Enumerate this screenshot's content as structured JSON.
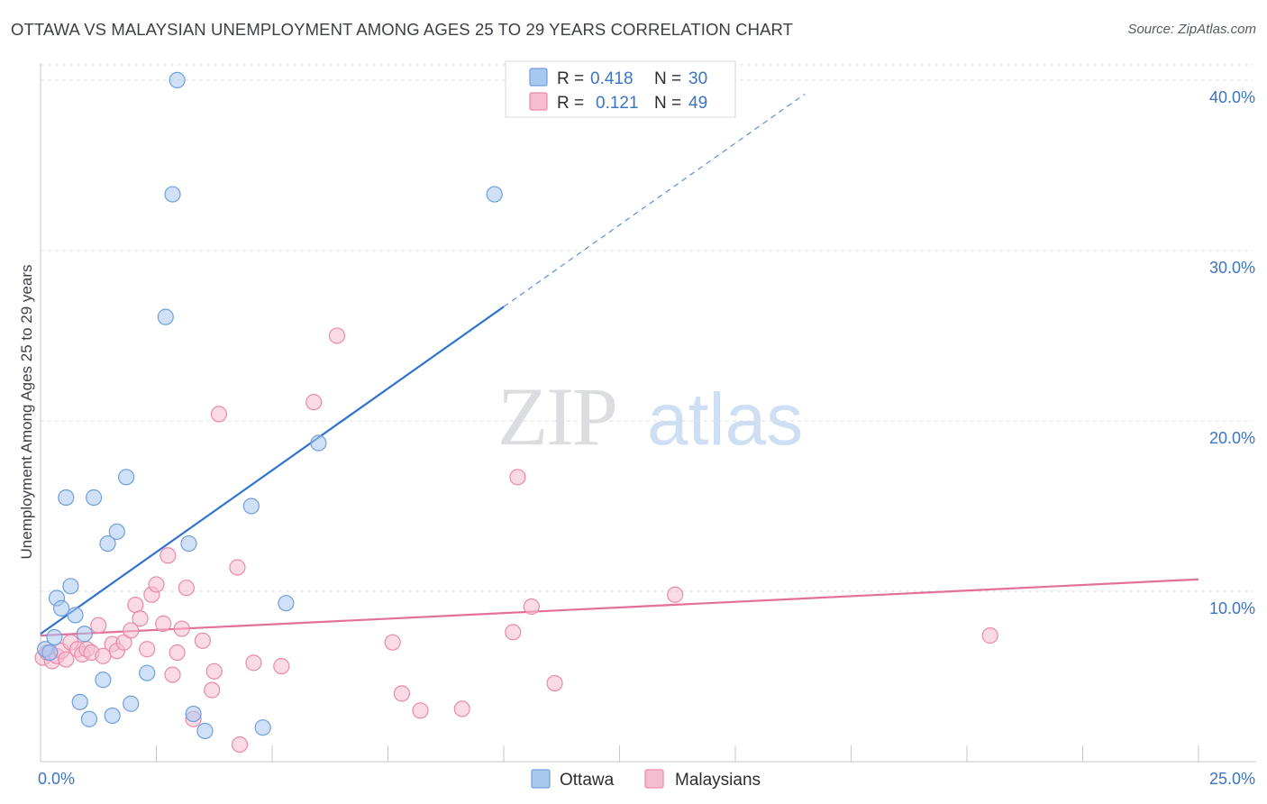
{
  "title": "OTTAWA VS MALAYSIAN UNEMPLOYMENT AMONG AGES 25 TO 29 YEARS CORRELATION CHART",
  "source": "Source: ZipAtlas.com",
  "watermark": {
    "zip": "ZIP",
    "atlas": "atlas"
  },
  "colors": {
    "ottawa_fill": "#a9c8f0",
    "ottawa_stroke": "#6f9fdc",
    "ottawa_line": "#2f73cf",
    "malaysian_fill": "#f6bcd0",
    "malaysian_stroke": "#e98aab",
    "malaysian_line": "#e2709a",
    "tick": "#3c74c4",
    "grid": "#dddddd"
  },
  "legend": {
    "r_label": "R =",
    "n_label": "N =",
    "rows": [
      {
        "r": "0.418",
        "n": "30"
      },
      {
        "r": "0.121",
        "n": "49"
      }
    ]
  },
  "chart_data": {
    "type": "scatter",
    "title": "OTTAWA VS MALAYSIAN UNEMPLOYMENT AMONG AGES 25 TO 29 YEARS CORRELATION CHART",
    "xlabel": "",
    "ylabel": "Unemployment Among Ages 25 to 29 years",
    "xlim": [
      0,
      25
    ],
    "ylim": [
      0,
      41
    ],
    "x_tick_labels": [
      "0.0%",
      "25.0%"
    ],
    "y_ticks": [
      10,
      20,
      30,
      40
    ],
    "y_tick_labels": [
      "10.0%",
      "20.0%",
      "30.0%",
      "40.0%"
    ],
    "grid": true,
    "legend_position": "top-center",
    "series": [
      {
        "name": "Ottawa",
        "r": 0.418,
        "n": 30,
        "trend": {
          "x0": 0,
          "y0": 7.5,
          "x1": 10,
          "y1": 26.7,
          "dash_to_x": 16.5
        },
        "points": [
          [
            0.1,
            6.6
          ],
          [
            0.2,
            6.4
          ],
          [
            0.3,
            7.3
          ],
          [
            0.35,
            9.6
          ],
          [
            0.45,
            9.0
          ],
          [
            0.55,
            15.5
          ],
          [
            0.65,
            10.3
          ],
          [
            0.75,
            8.6
          ],
          [
            0.85,
            3.5
          ],
          [
            0.95,
            7.5
          ],
          [
            1.05,
            2.5
          ],
          [
            1.15,
            15.5
          ],
          [
            1.35,
            4.8
          ],
          [
            1.45,
            12.8
          ],
          [
            1.55,
            2.7
          ],
          [
            1.65,
            13.5
          ],
          [
            1.85,
            16.7
          ],
          [
            1.95,
            3.4
          ],
          [
            2.3,
            5.2
          ],
          [
            2.7,
            26.1
          ],
          [
            2.85,
            33.3
          ],
          [
            2.95,
            40.0
          ],
          [
            3.2,
            12.8
          ],
          [
            3.3,
            2.8
          ],
          [
            3.55,
            1.8
          ],
          [
            4.55,
            15.0
          ],
          [
            4.8,
            2.0
          ],
          [
            5.3,
            9.3
          ],
          [
            6.0,
            18.7
          ],
          [
            9.8,
            33.3
          ]
        ]
      },
      {
        "name": "Malaysians",
        "r": 0.121,
        "n": 49,
        "trend": {
          "x0": 0,
          "y0": 7.4,
          "x1": 25,
          "y1": 10.7
        },
        "points": [
          [
            0.05,
            6.1
          ],
          [
            0.15,
            6.4
          ],
          [
            0.25,
            5.9
          ],
          [
            0.35,
            6.2
          ],
          [
            0.45,
            6.5
          ],
          [
            0.55,
            6.0
          ],
          [
            0.65,
            7.0
          ],
          [
            0.8,
            6.6
          ],
          [
            0.9,
            6.3
          ],
          [
            1.0,
            6.6
          ],
          [
            1.1,
            6.4
          ],
          [
            1.25,
            8.0
          ],
          [
            1.35,
            6.2
          ],
          [
            1.55,
            6.9
          ],
          [
            1.65,
            6.5
          ],
          [
            1.8,
            7.0
          ],
          [
            1.95,
            7.7
          ],
          [
            2.05,
            9.2
          ],
          [
            2.15,
            8.4
          ],
          [
            2.3,
            6.6
          ],
          [
            2.4,
            9.8
          ],
          [
            2.5,
            10.4
          ],
          [
            2.65,
            8.1
          ],
          [
            2.75,
            12.1
          ],
          [
            2.85,
            5.1
          ],
          [
            2.95,
            6.4
          ],
          [
            3.05,
            7.8
          ],
          [
            3.15,
            10.2
          ],
          [
            3.3,
            2.5
          ],
          [
            3.5,
            7.1
          ],
          [
            3.7,
            4.2
          ],
          [
            3.75,
            5.3
          ],
          [
            3.85,
            20.4
          ],
          [
            4.25,
            11.4
          ],
          [
            4.3,
            1.0
          ],
          [
            4.6,
            5.8
          ],
          [
            5.2,
            5.6
          ],
          [
            5.9,
            21.1
          ],
          [
            6.4,
            25.0
          ],
          [
            7.6,
            7.0
          ],
          [
            7.8,
            4.0
          ],
          [
            8.2,
            3.0
          ],
          [
            9.1,
            3.1
          ],
          [
            10.2,
            7.6
          ],
          [
            10.3,
            16.7
          ],
          [
            10.6,
            9.1
          ],
          [
            11.1,
            4.6
          ],
          [
            13.7,
            9.8
          ],
          [
            20.5,
            7.4
          ]
        ]
      }
    ]
  }
}
